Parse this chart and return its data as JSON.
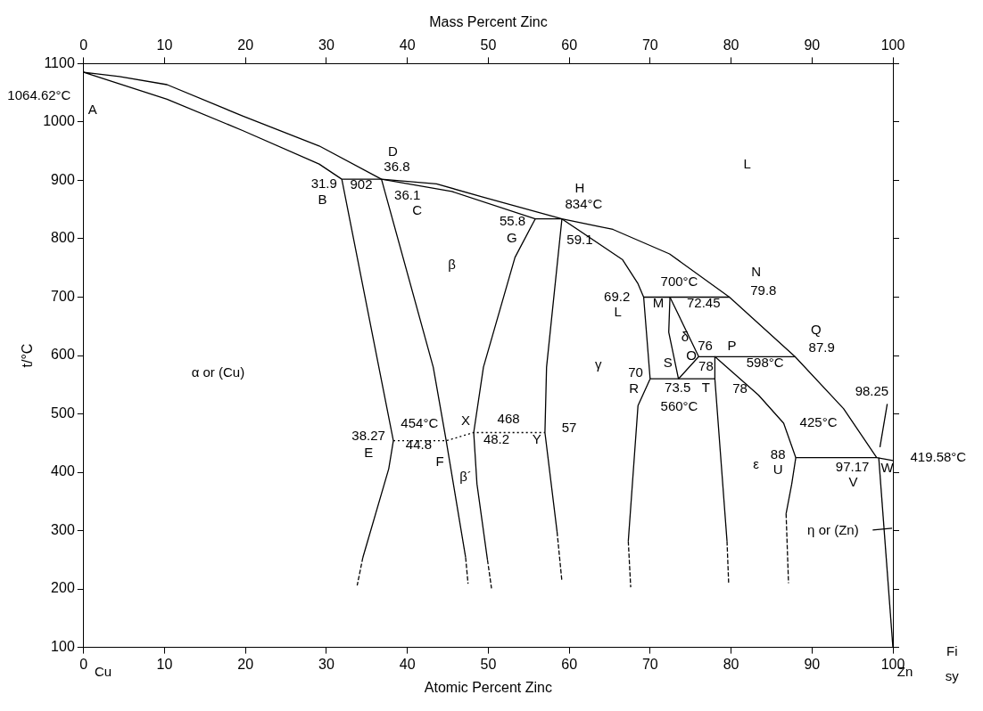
{
  "chart_data": {
    "type": "line",
    "xlabel": "Atomic Percent Zinc",
    "x2label": "Mass Percent Zinc",
    "ylabel": "t/°C",
    "xlim": [
      0,
      100
    ],
    "xticks": [
      0,
      10,
      20,
      30,
      40,
      50,
      60,
      70,
      80,
      90,
      100
    ],
    "x2lim": [
      0,
      100
    ],
    "x2ticks": [
      0,
      10,
      20,
      30,
      40,
      50,
      60,
      70,
      80,
      90,
      100
    ],
    "ylim": [
      100,
      1100
    ],
    "yticks": [
      100,
      200,
      300,
      400,
      500,
      600,
      700,
      800,
      900,
      1000,
      1100
    ],
    "marker": "none",
    "series": [
      {
        "color": "#000000",
        "x": [
          31.9,
          29.1,
          19.7,
          10.3,
          0,
          4.4,
          10.3,
          19.7,
          29.1,
          36.8,
          43.6,
          49.4,
          59.1,
          65.4,
          72.4,
          79.8,
          87.9,
          93.9,
          98
        ],
        "values": [
          902,
          928,
          985,
          1039,
          1085,
          1078,
          1064,
          1010,
          959,
          902,
          894,
          871,
          834,
          816,
          774,
          700,
          598,
          509,
          425
        ]
      },
      {
        "color": "#000000",
        "x": [
          31.9,
          38.27,
          37.7,
          34.5
        ],
        "values": [
          902,
          454,
          406,
          254
        ]
      },
      {
        "color": "#000000",
        "line_style": "dashed",
        "x": [
          34.5,
          33.8
        ],
        "values": [
          254,
          206
        ]
      },
      {
        "color": "#000000",
        "x": [
          36.8,
          43.2,
          44.8,
          47.2
        ],
        "values": [
          902,
          580,
          454,
          254
        ]
      },
      {
        "color": "#000000",
        "line_style": "dashed",
        "x": [
          47.2,
          47.5
        ],
        "values": [
          254,
          209
        ]
      },
      {
        "color": "#000000",
        "x": [
          31.9,
          36.8,
          45.5,
          55.8,
          59.1
        ],
        "values": [
          902,
          902,
          881,
          834,
          834
        ]
      },
      {
        "color": "#000000",
        "x": [
          55.8,
          53.3,
          49.4,
          48.2,
          48.6,
          49.9
        ],
        "values": [
          834,
          768,
          580,
          468,
          380,
          250
        ]
      },
      {
        "color": "#000000",
        "line_style": "dashed",
        "x": [
          49.9,
          50.4
        ],
        "values": [
          250,
          201
        ]
      },
      {
        "color": "#000000",
        "x": [
          59.1,
          57.2,
          57,
          58.5
        ],
        "values": [
          834,
          580,
          468,
          298
        ]
      },
      {
        "color": "#000000",
        "line_style": "dashed",
        "x": [
          58.5,
          59.1
        ],
        "values": [
          298,
          213
        ]
      },
      {
        "color": "#000000",
        "line_style": "dotted",
        "x": [
          38.27,
          44.8,
          48.2,
          57
        ],
        "values": [
          454,
          454,
          468,
          468
        ]
      },
      {
        "color": "#000000",
        "x": [
          59.1,
          66.6,
          68.5,
          69.2,
          70
        ],
        "values": [
          834,
          764,
          723,
          700,
          560
        ]
      },
      {
        "color": "#000000",
        "x": [
          69.2,
          79.8
        ],
        "values": [
          700,
          700
        ]
      },
      {
        "color": "#000000",
        "x": [
          70,
          68.5,
          67.3
        ],
        "values": [
          560,
          514,
          282
        ]
      },
      {
        "color": "#000000",
        "line_style": "dashed",
        "x": [
          67.3,
          67.6
        ],
        "values": [
          282,
          203
        ]
      },
      {
        "color": "#000000",
        "x": [
          70,
          78
        ],
        "values": [
          560,
          560
        ]
      },
      {
        "color": "#000000",
        "x": [
          72.45,
          72.3,
          73.5
        ],
        "values": [
          700,
          640,
          560
        ]
      },
      {
        "color": "#000000",
        "x": [
          72.45,
          76,
          73.5
        ],
        "values": [
          700,
          598,
          560
        ]
      },
      {
        "color": "#000000",
        "x": [
          76,
          87.9
        ],
        "values": [
          598,
          598
        ]
      },
      {
        "color": "#000000",
        "x": [
          78,
          78,
          79.5
        ],
        "values": [
          598,
          560,
          282
        ]
      },
      {
        "color": "#000000",
        "line_style": "dashed",
        "x": [
          79.5,
          79.7
        ],
        "values": [
          282,
          211
        ]
      },
      {
        "color": "#000000",
        "x": [
          78,
          83.4,
          86.5,
          88
        ],
        "values": [
          598,
          532,
          484,
          425
        ]
      },
      {
        "color": "#000000",
        "x": [
          88,
          87.5,
          86.8
        ],
        "values": [
          425,
          380,
          329
        ]
      },
      {
        "color": "#000000",
        "line_style": "dashed",
        "x": [
          86.8,
          87.1
        ],
        "values": [
          329,
          210
        ]
      },
      {
        "color": "#000000",
        "x": [
          88,
          98,
          100
        ],
        "values": [
          425,
          425,
          420
        ]
      },
      {
        "color": "#000000",
        "x": [
          98.25,
          100
        ],
        "values": [
          425,
          100
        ]
      },
      {
        "color": "#000000",
        "x": [
          99.3,
          98.4
        ],
        "values": [
          517,
          443
        ]
      },
      {
        "color": "#000000",
        "x": [
          97.5,
          99.9
        ],
        "values": [
          301,
          304
        ]
      }
    ],
    "annotations": [
      "1064.62°C",
      "A",
      "D",
      "36.8",
      "31.9",
      "B",
      "902",
      "36.1",
      "C",
      "H",
      "834°C",
      "55.8",
      "G",
      "59.1",
      "L",
      "β",
      "69.2",
      "L",
      "700°C",
      "M",
      "72.45",
      "N",
      "79.8",
      "δ",
      "Q",
      "87.9",
      "76",
      "P",
      "O",
      "598°C",
      "78",
      "70",
      "S",
      "γ",
      "73.5",
      "T",
      "78",
      "R",
      "560°C",
      "98.25",
      "α or (Cu)",
      "X",
      "468",
      "454°C",
      "38.27",
      "E",
      "44.8",
      "48.2",
      "Y",
      "57",
      "F",
      "β´",
      "425°C",
      "88",
      "ε",
      "U",
      "97.17",
      "V",
      "W",
      "419.58°C",
      "η or (Zn)",
      "Cu",
      "Zn",
      "Fi",
      "sy"
    ]
  }
}
